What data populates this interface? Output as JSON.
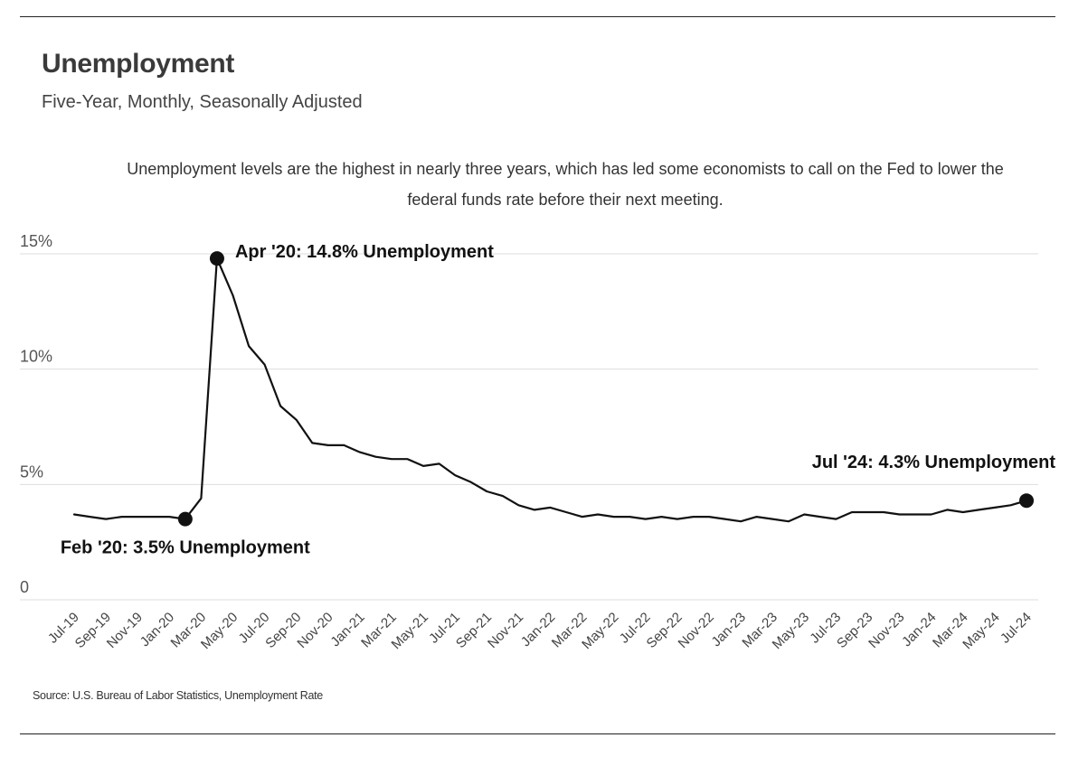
{
  "header": {
    "title": "Unemployment",
    "subtitle": "Five-Year, Monthly, Seasonally Adjusted",
    "annotation": "Unemployment levels are the highest in nearly three years, which has led some economists to call on the Fed to lower the federal funds rate before their next meeting."
  },
  "footer": {
    "source": "Source:  U.S. Bureau of Labor Statistics, Unemployment Rate"
  },
  "colors": {
    "line": "#111111",
    "grid": "#dddddd",
    "rule": "#222222"
  },
  "chart_data": {
    "type": "line",
    "title": "Unemployment",
    "subtitle": "Five-Year, Monthly, Seasonally Adjusted",
    "ylim": [
      0,
      15
    ],
    "yticks": [
      0,
      5,
      10,
      15
    ],
    "ytick_labels": [
      "0",
      "5%",
      "10%",
      "15%"
    ],
    "grid": "horizontal",
    "x": [
      "Jul-19",
      "Aug-19",
      "Sep-19",
      "Oct-19",
      "Nov-19",
      "Dec-19",
      "Jan-20",
      "Feb-20",
      "Mar-20",
      "Apr-20",
      "May-20",
      "Jun-20",
      "Jul-20",
      "Aug-20",
      "Sep-20",
      "Oct-20",
      "Nov-20",
      "Dec-20",
      "Jan-21",
      "Feb-21",
      "Mar-21",
      "Apr-21",
      "May-21",
      "Jun-21",
      "Jul-21",
      "Aug-21",
      "Sep-21",
      "Oct-21",
      "Nov-21",
      "Dec-21",
      "Jan-22",
      "Feb-22",
      "Mar-22",
      "Apr-22",
      "May-22",
      "Jun-22",
      "Jul-22",
      "Aug-22",
      "Sep-22",
      "Oct-22",
      "Nov-22",
      "Dec-22",
      "Jan-23",
      "Feb-23",
      "Mar-23",
      "Apr-23",
      "May-23",
      "Jun-23",
      "Jul-23",
      "Aug-23",
      "Sep-23",
      "Oct-23",
      "Nov-23",
      "Dec-23",
      "Jan-24",
      "Feb-24",
      "Mar-24",
      "Apr-24",
      "May-24",
      "Jun-24",
      "Jul-24"
    ],
    "xtick_labels": [
      "Jul-19",
      "Sep-19",
      "Nov-19",
      "Jan-20",
      "Mar-20",
      "May-20",
      "Jul-20",
      "Sep-20",
      "Nov-20",
      "Jan-21",
      "Mar-21",
      "May-21",
      "Jul-21",
      "Sep-21",
      "Nov-21",
      "Jan-22",
      "Mar-22",
      "May-22",
      "Jul-22",
      "Sep-22",
      "Nov-22",
      "Jan-23",
      "Mar-23",
      "May-23",
      "Jul-23",
      "Sep-23",
      "Nov-23",
      "Jan-24",
      "Mar-24",
      "May-24",
      "Jul-24"
    ],
    "series": [
      {
        "values": [
          3.7,
          3.6,
          3.5,
          3.6,
          3.6,
          3.6,
          3.6,
          3.5,
          4.4,
          14.8,
          13.2,
          11.0,
          10.2,
          8.4,
          7.8,
          6.8,
          6.7,
          6.7,
          6.4,
          6.2,
          6.1,
          6.1,
          5.8,
          5.9,
          5.4,
          5.1,
          4.7,
          4.5,
          4.1,
          3.9,
          4.0,
          3.8,
          3.6,
          3.7,
          3.6,
          3.6,
          3.5,
          3.6,
          3.5,
          3.6,
          3.6,
          3.5,
          3.4,
          3.6,
          3.5,
          3.4,
          3.7,
          3.6,
          3.5,
          3.8,
          3.8,
          3.8,
          3.7,
          3.7,
          3.7,
          3.9,
          3.8,
          3.9,
          4.0,
          4.1,
          4.3
        ]
      }
    ],
    "highlights": [
      {
        "x": "Feb-20",
        "value": 3.5,
        "label": "Feb '20: 3.5% Unemployment"
      },
      {
        "x": "Apr-20",
        "value": 14.8,
        "label": "Apr '20: 14.8% Unemployment"
      },
      {
        "x": "Jul-24",
        "value": 4.3,
        "label": "Jul '24: 4.3% Unemployment"
      }
    ]
  }
}
